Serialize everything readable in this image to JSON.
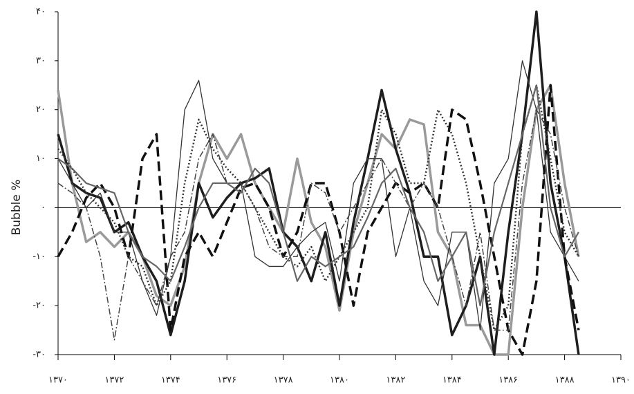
{
  "chart_data": {
    "type": "line",
    "ylabel": "Bubble %",
    "x": [
      1370,
      1370.5,
      1371,
      1371.5,
      1372,
      1372.5,
      1373,
      1373.5,
      1374,
      1374.5,
      1375,
      1375.5,
      1376,
      1376.5,
      1377,
      1377.5,
      1378,
      1378.5,
      1379,
      1379.5,
      1380,
      1380.5,
      1381,
      1381.5,
      1382,
      1382.5,
      1383,
      1383.5,
      1384,
      1384.5,
      1385,
      1385.5,
      1386,
      1386.5,
      1387,
      1387.5,
      1388,
      1388.5
    ],
    "xlim": [
      1370,
      1390
    ],
    "xticks": [
      {
        "value": 1370,
        "label": "۱۳۷۰"
      },
      {
        "value": 1372,
        "label": "۱۳۷۲"
      },
      {
        "value": 1374,
        "label": "۱۳۷۴"
      },
      {
        "value": 1376,
        "label": "۱۳۷۶"
      },
      {
        "value": 1378,
        "label": "۱۳۷۸"
      },
      {
        "value": 1380,
        "label": "۱۳۸۰"
      },
      {
        "value": 1382,
        "label": "۱۳۸۲"
      },
      {
        "value": 1384,
        "label": "۱۳۸۴"
      },
      {
        "value": 1386,
        "label": "۱۳۸۶"
      },
      {
        "value": 1388,
        "label": "۱۳۸۸"
      },
      {
        "value": 1390,
        "label": "۱۳۹۰"
      }
    ],
    "ylim": [
      -30,
      40
    ],
    "yticks": [
      {
        "value": 40,
        "label": "۴۰"
      },
      {
        "value": 30,
        "label": "۳۰"
      },
      {
        "value": 20,
        "label": "۲۰"
      },
      {
        "value": 10,
        "label": "۱۰"
      },
      {
        "value": 0,
        "label": "۰"
      },
      {
        "value": -10,
        "label": "-۱۰"
      },
      {
        "value": -20,
        "label": "-۲۰"
      },
      {
        "value": -30,
        "label": "-۳۰"
      }
    ],
    "zero_line": true,
    "series": [
      {
        "color": "#9a9a9a",
        "style": "thick",
        "values": [
          24,
          5,
          -7,
          -5,
          -8,
          -5,
          -10,
          -18,
          -20,
          -12,
          5,
          15,
          10,
          15,
          5,
          0,
          -5,
          10,
          -3,
          -8,
          -21,
          -5,
          5,
          15,
          12,
          18,
          17,
          -5,
          -10,
          -24,
          -24,
          -30,
          -30,
          0,
          20,
          25,
          5,
          -10
        ]
      },
      {
        "color": "#1e1e1e",
        "style": "thick",
        "values": [
          15,
          5,
          3,
          2,
          -5,
          -3,
          -10,
          -15,
          -26,
          -15,
          5,
          -2,
          2,
          5,
          6,
          8,
          -5,
          -8,
          -15,
          -5,
          -20,
          -3,
          10,
          24,
          12,
          3,
          -10,
          -10,
          -26,
          -20,
          -10,
          -30,
          -5,
          15,
          40,
          5,
          -10,
          -30
        ]
      },
      {
        "color": "#333333",
        "style": "thin",
        "values": [
          10,
          5,
          0,
          3,
          -5,
          -5,
          -15,
          -22,
          -10,
          20,
          26,
          10,
          5,
          5,
          -10,
          -12,
          -12,
          -8,
          -5,
          -3,
          -15,
          5,
          10,
          10,
          -10,
          0,
          -15,
          -20,
          -5,
          -5,
          -25,
          5,
          10,
          30,
          20,
          -5,
          -10,
          -15
        ]
      },
      {
        "color": "#111111",
        "style": "dashed",
        "values": [
          -10,
          -5,
          2,
          5,
          0,
          -10,
          10,
          15,
          -25,
          -10,
          -5,
          -10,
          -3,
          4,
          5,
          0,
          -10,
          -5,
          5,
          5,
          -5,
          -20,
          -5,
          0,
          5,
          3,
          5,
          0,
          20,
          18,
          5,
          -10,
          -25,
          -30,
          -15,
          25,
          -10,
          -25
        ]
      },
      {
        "color": "#333333",
        "style": "dotted",
        "values": [
          12,
          8,
          3,
          0,
          -3,
          -10,
          -12,
          -20,
          -15,
          5,
          18,
          12,
          8,
          5,
          0,
          -5,
          -10,
          -12,
          -8,
          -15,
          -10,
          -5,
          0,
          20,
          15,
          5,
          5,
          20,
          15,
          5,
          -10,
          -25,
          -20,
          15,
          25,
          10,
          -5,
          -10
        ]
      },
      {
        "color": "#444444",
        "style": "dash-dot",
        "values": [
          5,
          3,
          0,
          -10,
          -27,
          -10,
          -15,
          -20,
          -10,
          -5,
          10,
          15,
          5,
          5,
          0,
          -8,
          -10,
          -10,
          5,
          3,
          -5,
          0,
          5,
          10,
          5,
          0,
          5,
          0,
          -10,
          -20,
          -5,
          -25,
          -25,
          5,
          20,
          15,
          0,
          -10
        ]
      },
      {
        "color": "#666666",
        "style": "medium",
        "values": [
          10,
          8,
          5,
          4,
          3,
          -5,
          -10,
          -12,
          -15,
          -8,
          0,
          5,
          5,
          3,
          8,
          5,
          -5,
          -15,
          -10,
          -12,
          -10,
          -8,
          -2,
          5,
          8,
          0,
          -5,
          -15,
          -10,
          -5,
          -20,
          -5,
          5,
          15,
          25,
          0,
          -10,
          -5
        ]
      }
    ]
  }
}
